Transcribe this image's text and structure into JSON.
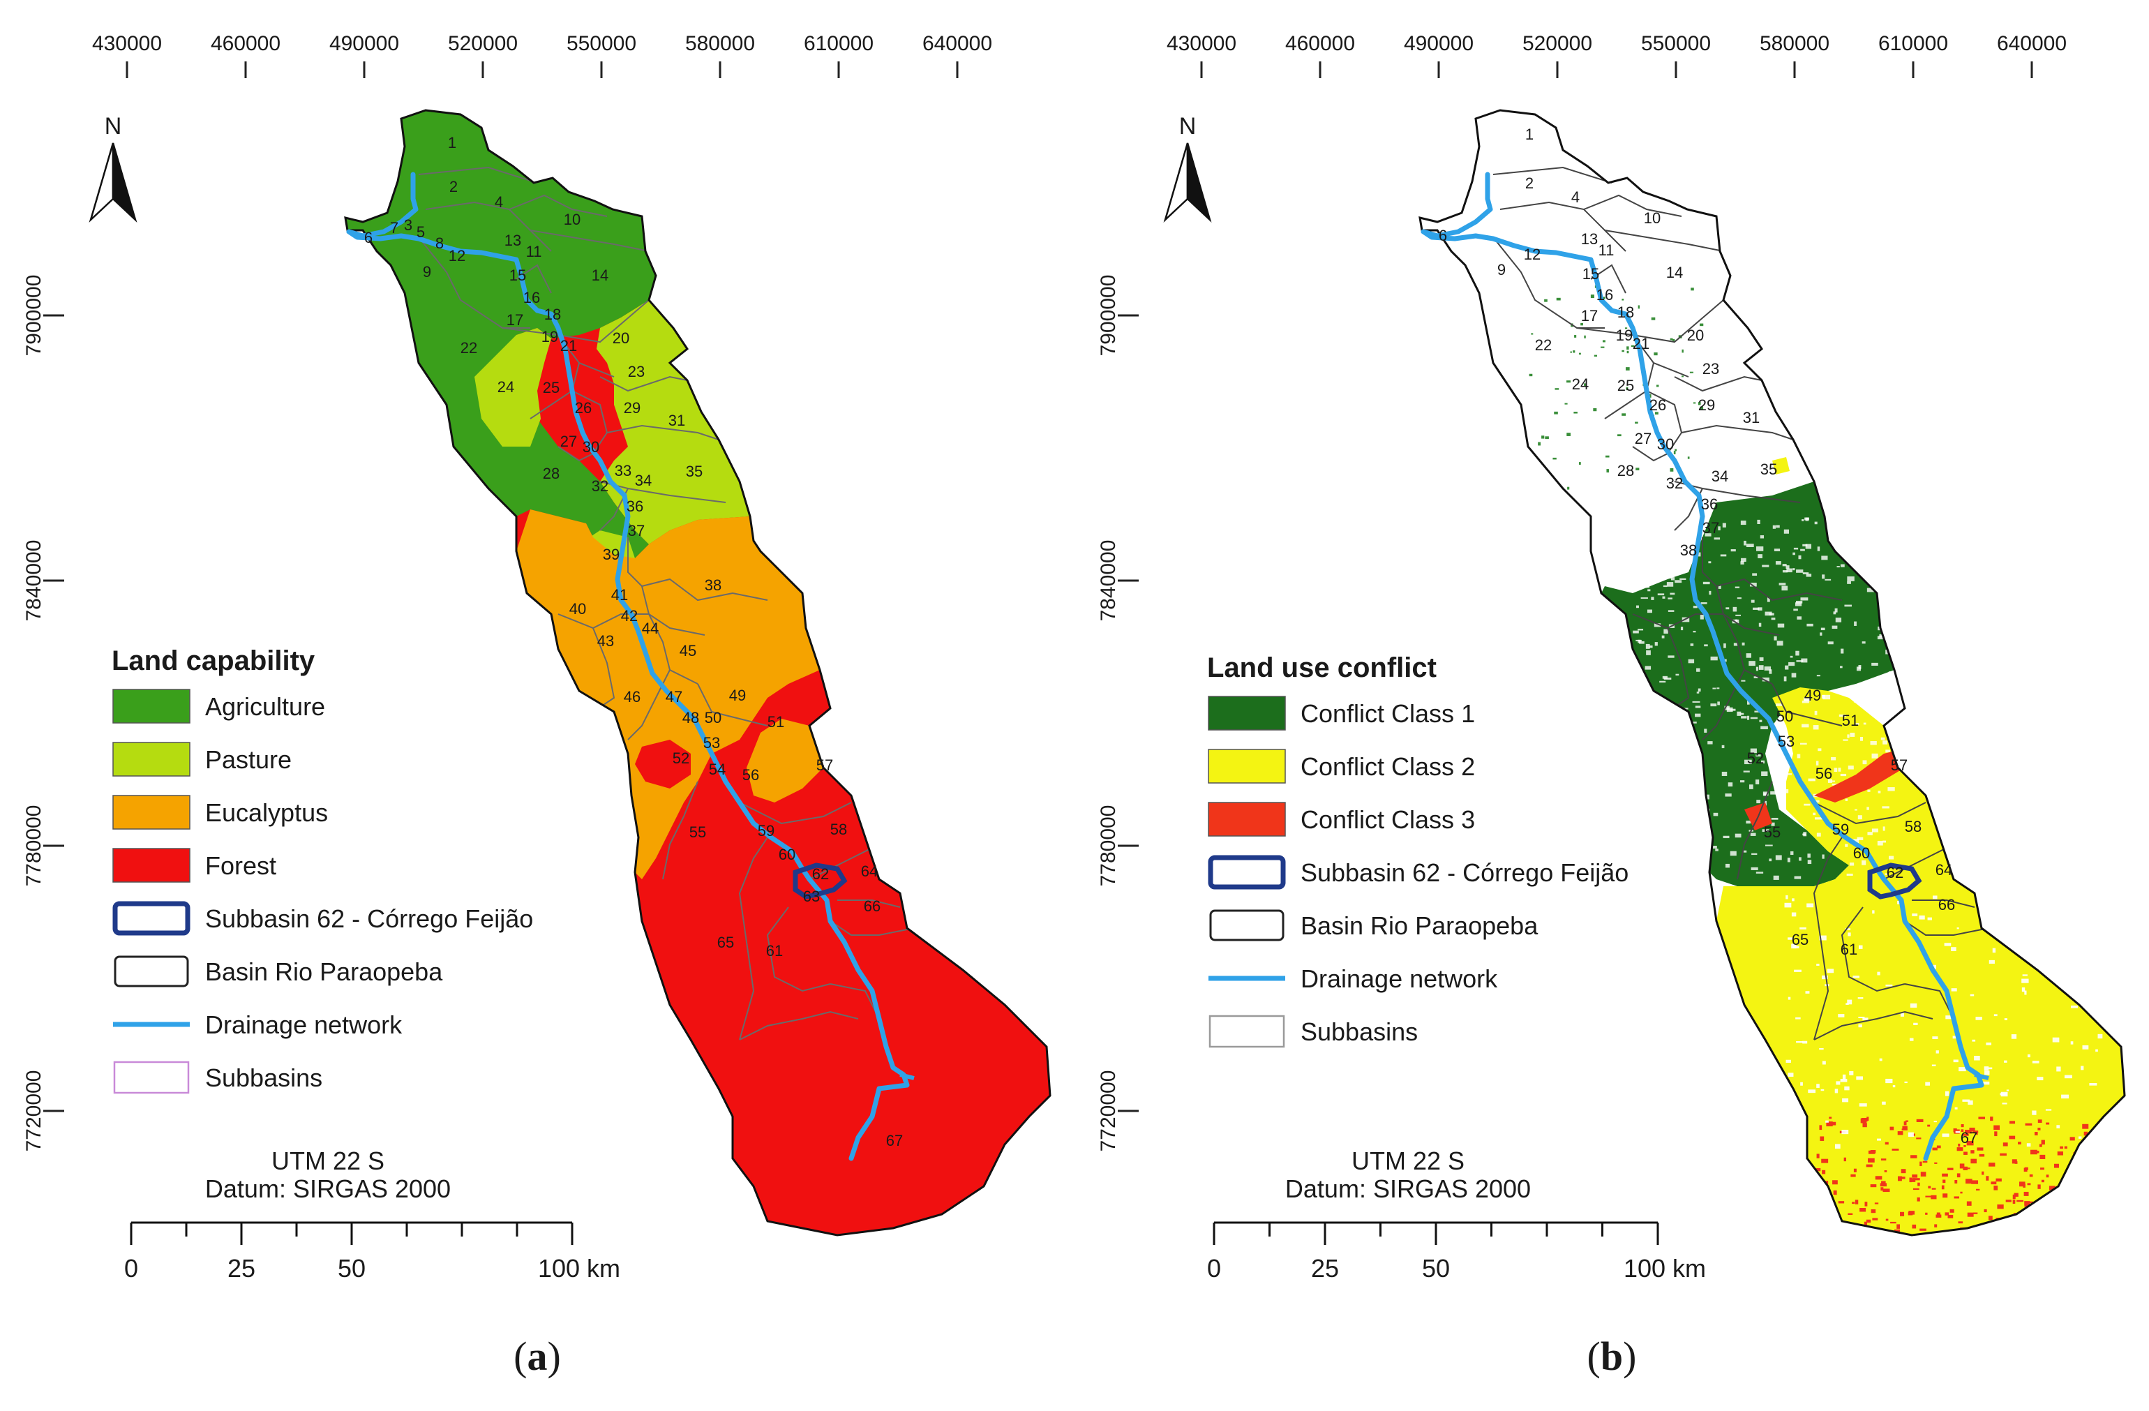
{
  "panels": [
    {
      "id": "a",
      "caption": "a",
      "mode": "capability",
      "x_ticks": [
        "430000",
        "460000",
        "490000",
        "520000",
        "550000",
        "580000",
        "610000",
        "640000"
      ],
      "y_ticks": [
        "7900000",
        "7840000",
        "7780000",
        "7720000"
      ],
      "north": "N",
      "legend": {
        "title": "Land capability",
        "items": [
          {
            "label": "Agriculture",
            "kind": "fill",
            "color": "#3a9f1b"
          },
          {
            "label": "Pasture",
            "kind": "fill",
            "color": "#b5dc10"
          },
          {
            "label": "Eucalyptus",
            "kind": "fill",
            "color": "#f5a300"
          },
          {
            "label": "Forest",
            "kind": "fill",
            "color": "#f01010"
          },
          {
            "label": "Subbasin 62 - Córrego Feijão",
            "kind": "outline",
            "color": "#1f3a8a"
          },
          {
            "label": "Basin Rio Paraopeba",
            "kind": "outline",
            "color": "#222222"
          },
          {
            "label": "Drainage network",
            "kind": "line",
            "color": "#2fa2e8"
          },
          {
            "label": "Subbasins",
            "kind": "outline-thin",
            "color": "#c98ad8"
          }
        ]
      },
      "projection": "UTM 22 S",
      "datum": "Datum: SIRGAS 2000",
      "scale_labels": [
        "0",
        "25",
        "50",
        "100 km"
      ]
    },
    {
      "id": "b",
      "caption": "b",
      "mode": "conflict",
      "x_ticks": [
        "430000",
        "460000",
        "490000",
        "520000",
        "550000",
        "580000",
        "610000",
        "640000"
      ],
      "y_ticks": [
        "7900000",
        "7840000",
        "7780000",
        "7720000"
      ],
      "north": "N",
      "legend": {
        "title": "Land use conflict",
        "items": [
          {
            "label": "Conflict Class 1",
            "kind": "fill",
            "color": "#1c6e1c"
          },
          {
            "label": "Conflict Class 2",
            "kind": "fill",
            "color": "#f4f412"
          },
          {
            "label": "Conflict Class 3",
            "kind": "fill",
            "color": "#f0351a"
          },
          {
            "label": "Subbasin 62 - Córrego Feijão",
            "kind": "outline",
            "color": "#1f3a8a"
          },
          {
            "label": "Basin Rio Paraopeba",
            "kind": "outline",
            "color": "#222222"
          },
          {
            "label": "Drainage network",
            "kind": "line",
            "color": "#2fa2e8"
          },
          {
            "label": "Subbasins",
            "kind": "outline-thin",
            "color": "#9a9a9a"
          }
        ]
      },
      "projection": "UTM 22 S",
      "datum": "Datum: SIRGAS 2000",
      "scale_labels": [
        "0",
        "25",
        "50",
        "100 km"
      ]
    }
  ],
  "subbasins_a": [
    "1",
    "2",
    "4",
    "10",
    "7",
    "3",
    "5",
    "8",
    "6",
    "12",
    "13",
    "11",
    "9",
    "14",
    "15",
    "16",
    "18",
    "17",
    "19",
    "21",
    "20",
    "22",
    "23",
    "24",
    "25",
    "26",
    "29",
    "31",
    "27",
    "30",
    "28",
    "32",
    "33",
    "34",
    "36",
    "35",
    "37",
    "39",
    "38",
    "40",
    "41",
    "42",
    "44",
    "43",
    "45",
    "46",
    "47",
    "48",
    "50",
    "49",
    "51",
    "52",
    "53",
    "54",
    "56",
    "57",
    "55",
    "59",
    "58",
    "60",
    "62",
    "63",
    "64",
    "66",
    "65",
    "61",
    "67"
  ],
  "subbasins_b": [
    "1",
    "2",
    "4",
    "10",
    "6",
    "9",
    "12",
    "13",
    "11",
    "14",
    "15",
    "16",
    "17",
    "18",
    "19",
    "20",
    "22",
    "21",
    "23",
    "24",
    "25",
    "26",
    "29",
    "31",
    "27",
    "30",
    "28",
    "32",
    "34",
    "35",
    "36",
    "37",
    "38",
    "49",
    "50",
    "51",
    "52",
    "53",
    "56",
    "57",
    "55",
    "59",
    "58",
    "60",
    "62",
    "64",
    "66",
    "65",
    "61",
    "67"
  ]
}
